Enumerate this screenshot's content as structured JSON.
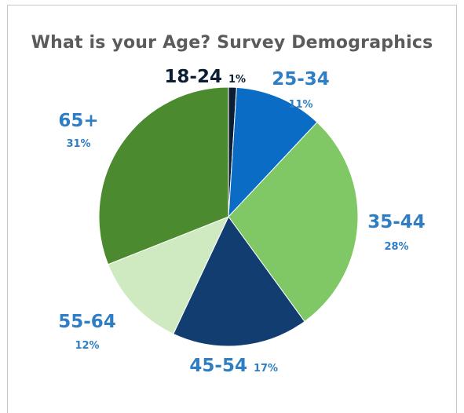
{
  "chart_data": {
    "type": "pie",
    "title": "What is your Age? Survey Demographics",
    "slices": [
      {
        "label": "18-24",
        "value": 1,
        "value_label": "1%",
        "color": "#0b1e33",
        "label_color": "#0b1e33"
      },
      {
        "label": "25-34",
        "value": 11,
        "value_label": "11%",
        "color": "#0a6cc4",
        "label_color": "#2f7ec4"
      },
      {
        "label": "35-44",
        "value": 28,
        "value_label": "28%",
        "color": "#7fc865",
        "label_color": "#2f7ec4"
      },
      {
        "label": "45-54",
        "value": 17,
        "value_label": "17%",
        "color": "#123d70",
        "label_color": "#2f7ec4"
      },
      {
        "label": "55-64",
        "value": 12,
        "value_label": "12%",
        "color": "#cfeac0",
        "label_color": "#2f7ec4"
      },
      {
        "label": "65+",
        "value": 31,
        "value_label": "31%",
        "color": "#4b8a2f",
        "label_color": "#2f7ec4"
      }
    ],
    "legend": "none",
    "start_angle": "top",
    "direction": "clockwise"
  }
}
